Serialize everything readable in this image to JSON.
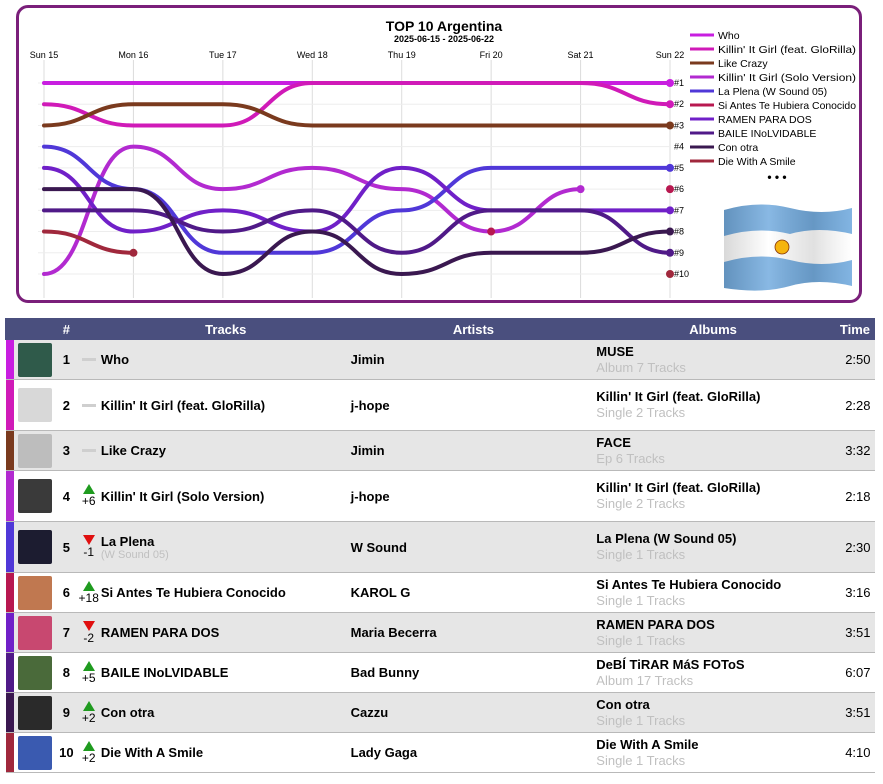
{
  "chart_data": {
    "type": "line",
    "title": "TOP 10 Argentina",
    "subtitle": "2025-06-15 - 2025-06-22",
    "x": [
      "Sun 15",
      "Mon 16",
      "Tue 17",
      "Wed 18",
      "Thu 19",
      "Fri 20",
      "Sat 21",
      "Sun 22"
    ],
    "y_labels": [
      "#1",
      "#2",
      "#3",
      "#4",
      "#5",
      "#6",
      "#7",
      "#8",
      "#9",
      "#10"
    ],
    "ylim": [
      1,
      10
    ],
    "more_label": "• • •",
    "series": [
      {
        "name": "Who",
        "color": "#c81ee0",
        "ranks": [
          1,
          1,
          1,
          1,
          1,
          1,
          1,
          1
        ]
      },
      {
        "name": "Killin' It Girl (feat. GloRilla)",
        "color": "#d01ab8",
        "ranks": [
          2,
          3,
          3,
          1,
          1,
          1,
          1,
          2
        ]
      },
      {
        "name": "Like Crazy",
        "color": "#7a3a1e",
        "ranks": [
          3,
          2,
          2,
          3,
          3,
          3,
          3,
          3
        ]
      },
      {
        "name": "Killin' It Girl (Solo Version)",
        "color": "#b22ad0",
        "ranks": [
          10,
          4,
          6,
          5,
          6,
          8,
          6,
          null
        ]
      },
      {
        "name": "La Plena (W Sound 05)",
        "color": "#5038d8",
        "ranks": [
          4,
          6,
          9,
          9,
          7,
          5,
          5,
          5
        ]
      },
      {
        "name": "Si Antes Te Hubiera Conocido",
        "color": "#b81850",
        "ranks": [
          null,
          null,
          null,
          null,
          null,
          8,
          null,
          6
        ]
      },
      {
        "name": "RAMEN PARA DOS",
        "color": "#7020c8",
        "ranks": [
          5,
          8,
          7,
          8,
          5,
          7,
          7,
          7
        ]
      },
      {
        "name": "BAILE INoLVIDABLE",
        "color": "#501a88",
        "ranks": [
          7,
          7,
          8,
          7,
          9,
          7,
          7,
          9
        ]
      },
      {
        "name": "Con otra",
        "color": "#3a1850",
        "ranks": [
          6,
          6,
          10,
          8,
          10,
          9,
          9,
          8
        ]
      },
      {
        "name": "Die With A Smile",
        "color": "#a0283c",
        "ranks": [
          8,
          9,
          null,
          null,
          null,
          null,
          null,
          10
        ]
      }
    ]
  },
  "table": {
    "headers": {
      "num": "#",
      "tracks": "Tracks",
      "artists": "Artists",
      "albums": "Albums",
      "time": "Time"
    },
    "rows": [
      {
        "rank": "1",
        "change": "",
        "dir": "same",
        "track": "Who",
        "track_sub": "",
        "artist": "Jimin",
        "album": "MUSE",
        "album_sub": "Album 7 Tracks",
        "time": "2:50",
        "bar": "#c81ee0",
        "thumb": "#2f5a4a"
      },
      {
        "rank": "2",
        "change": "",
        "dir": "same",
        "track": "Killin' It Girl (feat. GloRilla)",
        "track_sub": "",
        "artist": "j-hope",
        "album": "Killin' It Girl (feat. GloRilla)",
        "album_sub": "Single 2 Tracks",
        "time": "2:28",
        "bar": "#d01ab8",
        "thumb": "#d8d8d8"
      },
      {
        "rank": "3",
        "change": "",
        "dir": "same",
        "track": "Like Crazy",
        "track_sub": "",
        "artist": "Jimin",
        "album": "FACE",
        "album_sub": "Ep 6 Tracks",
        "time": "3:32",
        "bar": "#7a3a1e",
        "thumb": "#bdbdbd"
      },
      {
        "rank": "4",
        "change": "+6",
        "dir": "up",
        "track": "Killin' It Girl (Solo Version)",
        "track_sub": "",
        "artist": "j-hope",
        "album": "Killin' It Girl (feat. GloRilla)",
        "album_sub": "Single 2 Tracks",
        "time": "2:18",
        "bar": "#b22ad0",
        "thumb": "#3a3a3a"
      },
      {
        "rank": "5",
        "change": "-1",
        "dir": "down",
        "track": "La Plena",
        "track_sub": "(W Sound 05)",
        "artist": "W Sound",
        "album": "La Plena (W Sound 05)",
        "album_sub": "Single 1 Tracks",
        "time": "2:30",
        "bar": "#5038d8",
        "thumb": "#1c1c30"
      },
      {
        "rank": "6",
        "change": "+18",
        "dir": "up",
        "track": "Si Antes Te Hubiera Conocido",
        "track_sub": "",
        "artist": "KAROL G",
        "album": "Si Antes Te Hubiera Conocido",
        "album_sub": "Single 1 Tracks",
        "time": "3:16",
        "bar": "#b81850",
        "thumb": "#c07850"
      },
      {
        "rank": "7",
        "change": "-2",
        "dir": "down",
        "track": "RAMEN PARA DOS",
        "track_sub": "",
        "artist": "Maria Becerra",
        "album": "RAMEN PARA DOS",
        "album_sub": "Single 1 Tracks",
        "time": "3:51",
        "bar": "#7020c8",
        "thumb": "#c84870"
      },
      {
        "rank": "8",
        "change": "+5",
        "dir": "up",
        "track": "BAILE INoLVIDABLE",
        "track_sub": "",
        "artist": "Bad Bunny",
        "album": "DeBÍ TiRAR MáS FOToS",
        "album_sub": "Album 17 Tracks",
        "time": "6:07",
        "bar": "#501a88",
        "thumb": "#4a6a3a"
      },
      {
        "rank": "9",
        "change": "+2",
        "dir": "up",
        "track": "Con otra",
        "track_sub": "",
        "artist": "Cazzu",
        "album": "Con otra",
        "album_sub": "Single 1 Tracks",
        "time": "3:51",
        "bar": "#3a1850",
        "thumb": "#2a2a2a"
      },
      {
        "rank": "10",
        "change": "+2",
        "dir": "up",
        "track": "Die With A Smile",
        "track_sub": "",
        "artist": "Lady Gaga",
        "album": "Die With A Smile",
        "album_sub": "Single 1 Tracks",
        "time": "4:10",
        "bar": "#a0283c",
        "thumb": "#3a5ab0"
      }
    ]
  }
}
